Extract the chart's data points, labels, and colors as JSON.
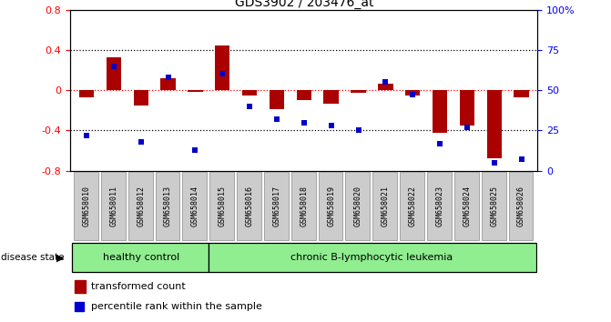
{
  "title": "GDS3902 / 203476_at",
  "categories": [
    "GSM658010",
    "GSM658011",
    "GSM658012",
    "GSM658013",
    "GSM658014",
    "GSM658015",
    "GSM658016",
    "GSM658017",
    "GSM658018",
    "GSM658019",
    "GSM658020",
    "GSM658021",
    "GSM658022",
    "GSM658023",
    "GSM658024",
    "GSM658025",
    "GSM658026"
  ],
  "bar_values": [
    -0.07,
    0.33,
    -0.15,
    0.12,
    -0.02,
    0.44,
    -0.05,
    -0.19,
    -0.1,
    -0.13,
    -0.03,
    0.06,
    -0.05,
    -0.42,
    -0.35,
    -0.68,
    -0.07
  ],
  "scatter_percentiles": [
    22,
    65,
    18,
    58,
    13,
    60,
    40,
    32,
    30,
    28,
    25,
    55,
    47,
    17,
    27,
    5,
    7
  ],
  "ylim_left": [
    -0.8,
    0.8
  ],
  "ylim_right": [
    0,
    100
  ],
  "bar_color": "#aa0000",
  "scatter_color": "#0000cc",
  "healthy_count": 5,
  "n_total": 17,
  "disease_label": "chronic B-lymphocytic leukemia",
  "healthy_label": "healthy control",
  "disease_state_label": "disease state",
  "legend_bar_label": "transformed count",
  "legend_scatter_label": "percentile rank within the sample",
  "right_yticks": [
    0,
    25,
    50,
    75,
    100
  ],
  "right_yticklabels": [
    "0",
    "25",
    "50",
    "75",
    "100%"
  ],
  "left_yticks": [
    -0.8,
    -0.4,
    0.0,
    0.4,
    0.8
  ],
  "left_yticklabels": [
    "-0.8",
    "-0.4",
    "0",
    "0.4",
    "0.8"
  ],
  "bg_color": "#ffffff",
  "group_fill_color": "#90ee90",
  "xtick_box_color": "#cccccc",
  "xtick_box_edge": "#999999"
}
